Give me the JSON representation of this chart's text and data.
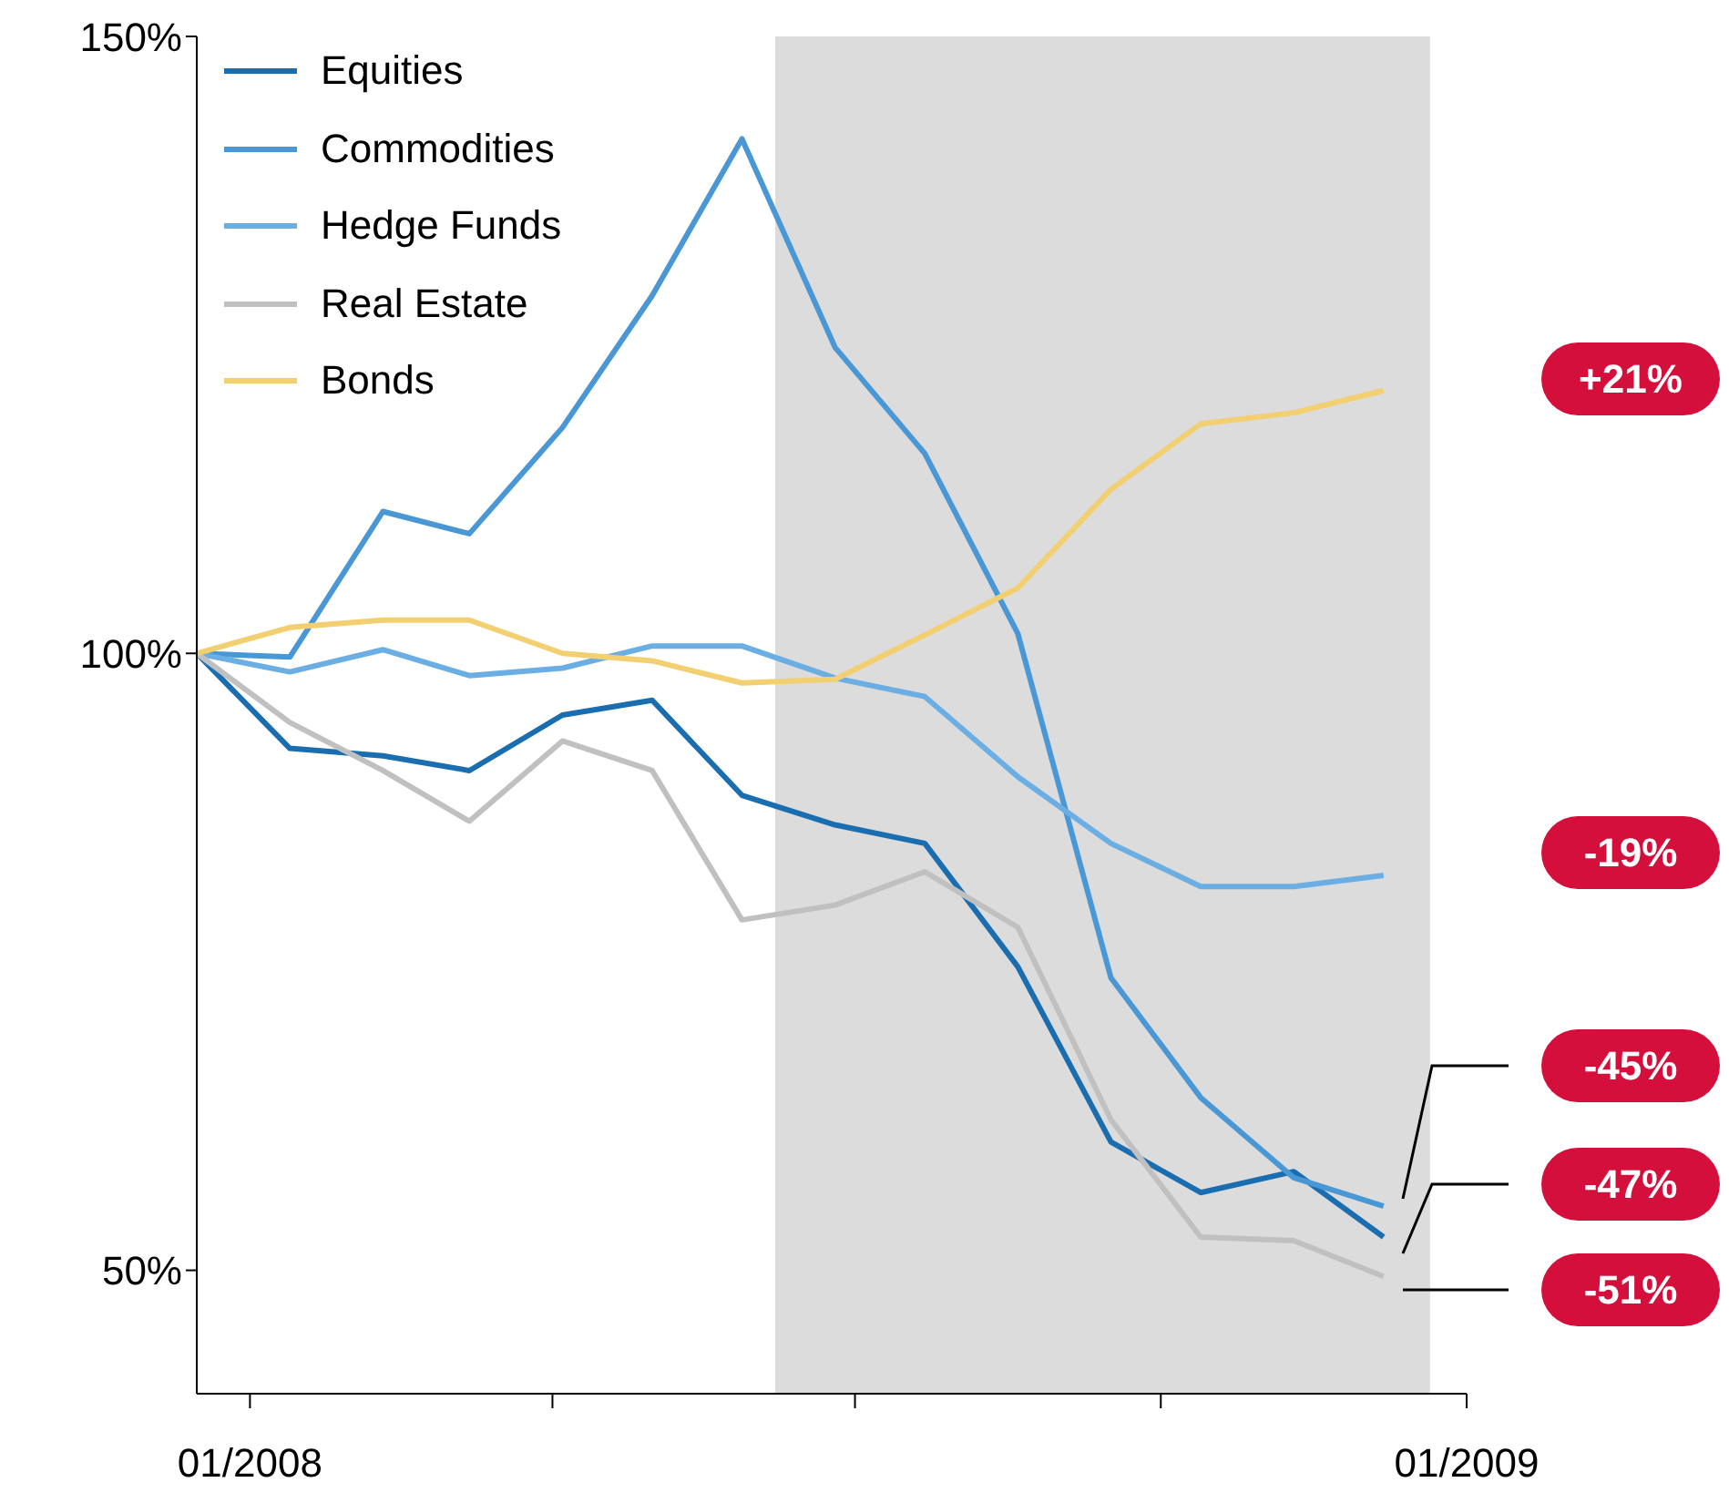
{
  "chart_data": {
    "type": "line",
    "x": [
      "2007-12-16",
      "2008-01-13",
      "2008-02-10",
      "2008-03-07",
      "2008-04-04",
      "2008-05-01",
      "2008-05-28",
      "2008-06-25",
      "2008-07-22",
      "2008-08-19",
      "2008-09-16",
      "2008-10-13",
      "2008-11-10",
      "2008-12-07"
    ],
    "series": [
      {
        "name": "Equities",
        "color": "#1a6eb0",
        "values": [
          100,
          92.3,
          91.7,
          90.5,
          95,
          96.2,
          88.5,
          86.1,
          84.6,
          74.6,
          60.4,
          56.3,
          58,
          52.7
        ]
      },
      {
        "name": "Commodities",
        "color": "#4a97d6",
        "values": [
          100,
          99.7,
          111.5,
          109.7,
          118.3,
          129,
          141.7,
          124.8,
          116.2,
          101.6,
          73.7,
          64,
          57.5,
          55.2
        ]
      },
      {
        "name": "Hedge Funds",
        "color": "#6aaee3",
        "values": [
          100,
          98.5,
          100.3,
          98.2,
          98.8,
          100.6,
          100.6,
          98,
          96.5,
          90,
          84.6,
          81.1,
          81.1,
          82
        ]
      },
      {
        "name": "Real Estate",
        "color": "#c0c0c0",
        "values": [
          100,
          94.4,
          90.5,
          86.4,
          92.9,
          90.5,
          78.4,
          79.6,
          82.3,
          77.8,
          62.2,
          52.7,
          52.4,
          49.5
        ]
      },
      {
        "name": "Bonds",
        "color": "#f2cf70",
        "values": [
          100,
          102.1,
          102.7,
          102.7,
          100,
          99.4,
          97.6,
          97.9,
          101.5,
          105.3,
          113.3,
          118.6,
          119.5,
          121.3
        ]
      }
    ],
    "xlim": [
      "2007-12-16",
      "2009-01-01"
    ],
    "xticks": [
      {
        "value": "2008-01-01",
        "label": "01/2008"
      },
      {
        "value": "2008-04-01",
        "label": null
      },
      {
        "value": "2008-07-01",
        "label": null
      },
      {
        "value": "2008-10-01",
        "label": null
      },
      {
        "value": "2009-01-01",
        "label": "01/2009"
      }
    ],
    "ylim": [
      40,
      150
    ],
    "yticks": [
      {
        "value": 50,
        "label": "50%"
      },
      {
        "value": 100,
        "label": "100%"
      },
      {
        "value": 150,
        "label": "150%"
      }
    ],
    "bands": [
      {
        "axis": "x",
        "from": "2008-06-07",
        "to": "2008-12-21",
        "color": "#dcdcdc"
      }
    ],
    "annotations": [
      "+21%",
      "-19%",
      "-45%",
      "-47%",
      "-51%"
    ],
    "grid": false,
    "legend": "top left",
    "marker": "none",
    "line_style": "solid"
  }
}
